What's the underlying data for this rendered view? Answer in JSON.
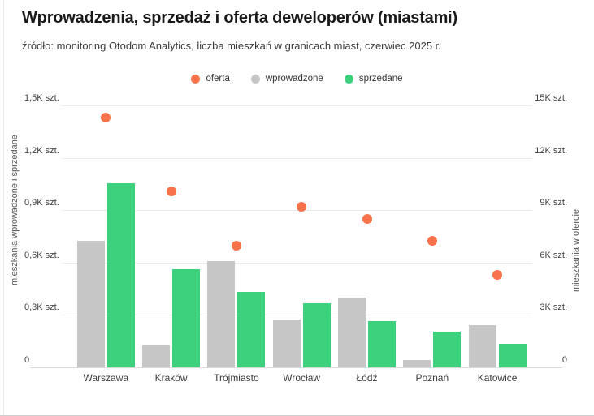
{
  "header": {
    "title": "Wprowadzenia, sprzedaż i oferta deweloperów (miastami)",
    "subtitle": "źródło: monitoring Otodom Analytics, liczba mieszkań w granicach miast, czerwiec 2025 r."
  },
  "legend": [
    {
      "label": "oferta",
      "color": "#F8734B",
      "icon": "circle"
    },
    {
      "label": "wprowadzone",
      "color": "#C6C6C6",
      "icon": "circle"
    },
    {
      "label": "sprzedane",
      "color": "#3DD17D",
      "icon": "circle"
    }
  ],
  "chart_data": {
    "type": "bar",
    "subtype": "grouped bars with scatter overlay on secondary axis",
    "categories": [
      "Warszawa",
      "Kraków",
      "Trójmiasto",
      "Wrocław",
      "Łódź",
      "Poznań",
      "Katowice"
    ],
    "series": [
      {
        "name": "wprowadzone",
        "type": "bar",
        "axis": "left",
        "color": "#C6C6C6",
        "values": [
          725,
          125,
          610,
          275,
          400,
          40,
          240
        ]
      },
      {
        "name": "sprzedane",
        "type": "bar",
        "axis": "left",
        "color": "#3DD17D",
        "values": [
          1055,
          560,
          430,
          365,
          265,
          205,
          135
        ]
      },
      {
        "name": "oferta",
        "type": "scatter",
        "axis": "right",
        "color": "#F8734B",
        "values": [
          14300,
          10100,
          6950,
          9200,
          8500,
          7250,
          5300
        ]
      }
    ],
    "left_axis": {
      "title": "mieszkania wprowadzone i sprzedane",
      "max": 1500,
      "min": 0,
      "step": 300,
      "tick_labels": [
        "0",
        "0,3K szt.",
        "0,6K szt.",
        "0,9K szt.",
        "1,2K szt.",
        "1,5K szt."
      ]
    },
    "right_axis": {
      "title": "mieszkania w ofercie",
      "max": 15000,
      "min": 0,
      "step": 3000,
      "tick_labels": [
        "0",
        "3K szt.",
        "6K szt.",
        "9K szt.",
        "12K szt.",
        "15K szt."
      ]
    },
    "grid": true,
    "legend_position": "top center"
  }
}
